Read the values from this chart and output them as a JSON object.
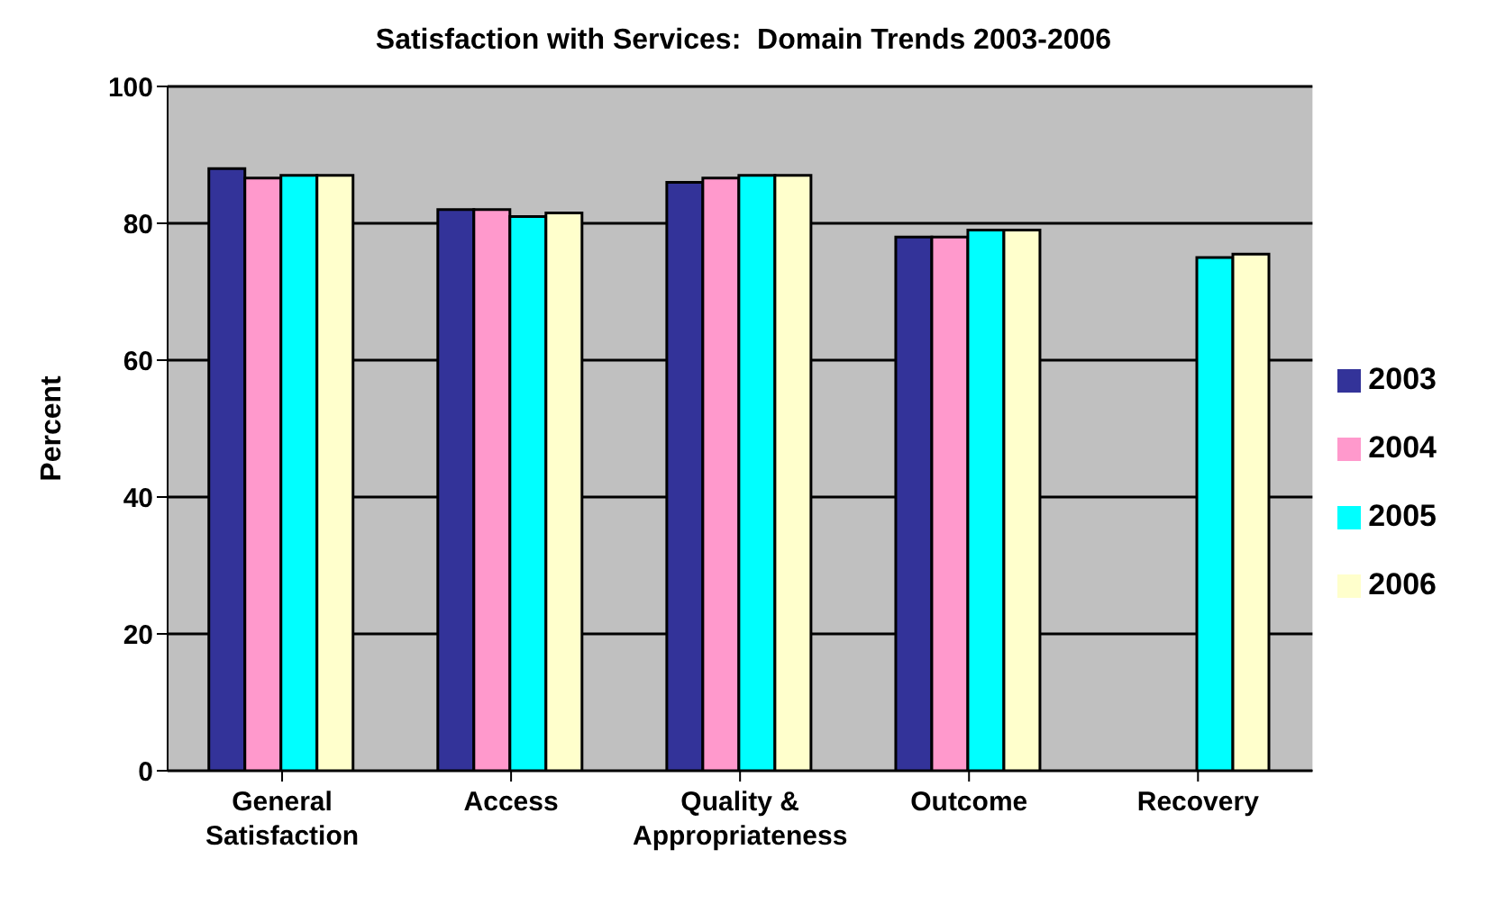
{
  "chart_data": {
    "type": "bar",
    "title": "Satisfaction with Services:  Domain Trends 2003-2006",
    "ylabel": "Percent",
    "categories": [
      "General Satisfaction",
      "Access",
      "Quality & Appropriateness",
      "Outcome",
      "Recovery"
    ],
    "series": [
      {
        "name": "2003",
        "color": "#333399",
        "values": [
          88,
          82,
          86,
          78,
          0
        ]
      },
      {
        "name": "2004",
        "color": "#ff99cc",
        "values": [
          86.6,
          82,
          86.6,
          78,
          0
        ]
      },
      {
        "name": "2005",
        "color": "#00ffff",
        "values": [
          87,
          81,
          87,
          79,
          75
        ]
      },
      {
        "name": "2006",
        "color": "#ffffcc",
        "values": [
          87,
          81.5,
          87,
          79,
          75.5
        ]
      }
    ],
    "ylim": [
      0,
      100
    ],
    "yticks": [
      0,
      20,
      40,
      60,
      80,
      100
    ],
    "grid": "y",
    "legend": "right"
  }
}
